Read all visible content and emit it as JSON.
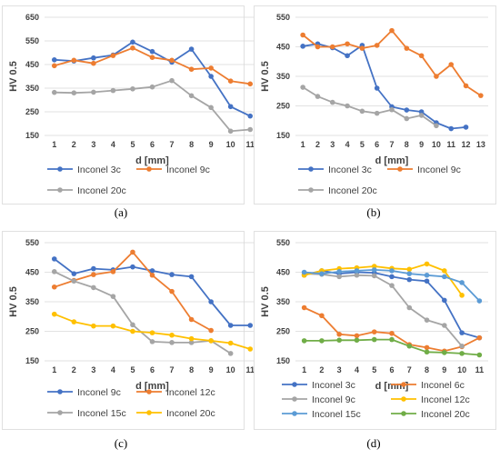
{
  "chart_data": [
    {
      "type": "line",
      "panel_label": "(a)",
      "xlabel": "d [mm]",
      "ylabel": "HV 0.5",
      "x": [
        1,
        2,
        3,
        4,
        5,
        6,
        7,
        8,
        9,
        10,
        11
      ],
      "ylim": [
        150,
        650
      ],
      "yticks": [
        150,
        250,
        350,
        450,
        550,
        650
      ],
      "grid": true,
      "legend_position": "bottom",
      "series": [
        {
          "name": "Inconel 3c",
          "color": "#4472c4",
          "values": [
            470,
            465,
            478,
            490,
            545,
            505,
            460,
            515,
            400,
            272,
            232
          ]
        },
        {
          "name": "Inconel 9c",
          "color": "#ed7d31",
          "values": [
            445,
            468,
            455,
            488,
            520,
            480,
            468,
            430,
            435,
            380,
            368
          ]
        },
        {
          "name": "Inconel 20c",
          "color": "#a5a5a5",
          "values": [
            332,
            330,
            333,
            340,
            347,
            355,
            382,
            318,
            268,
            168,
            175
          ]
        }
      ]
    },
    {
      "type": "line",
      "panel_label": "(b)",
      "xlabel": "d [mm]",
      "ylabel": "HV 0.5",
      "x": [
        1,
        2,
        3,
        4,
        5,
        6,
        7,
        8,
        9,
        10,
        11,
        12,
        13
      ],
      "ylim": [
        150,
        550
      ],
      "yticks": [
        150,
        250,
        350,
        450,
        550
      ],
      "grid": true,
      "legend_position": "bottom",
      "series": [
        {
          "name": "Inconel 3c",
          "color": "#4472c4",
          "values": [
            452,
            460,
            447,
            420,
            455,
            310,
            247,
            236,
            230,
            193,
            173,
            178,
            null
          ]
        },
        {
          "name": "Inconel 9c",
          "color": "#ed7d31",
          "values": [
            490,
            450,
            450,
            460,
            445,
            455,
            505,
            445,
            420,
            350,
            390,
            318,
            285
          ]
        },
        {
          "name": "Inconel 20c",
          "color": "#a5a5a5",
          "values": [
            313,
            282,
            262,
            250,
            232,
            225,
            237,
            207,
            218,
            183,
            null,
            null,
            null
          ]
        }
      ]
    },
    {
      "type": "line",
      "panel_label": "(c)",
      "xlabel": "d [mm]",
      "ylabel": "HV 0.5",
      "x": [
        1,
        2,
        3,
        4,
        5,
        6,
        7,
        8,
        9,
        10,
        11
      ],
      "ylim": [
        150,
        550
      ],
      "yticks": [
        150,
        250,
        350,
        450,
        550
      ],
      "grid": true,
      "legend_position": "bottom",
      "series": [
        {
          "name": "Inconel 9c",
          "color": "#4472c4",
          "values": [
            495,
            445,
            462,
            458,
            468,
            455,
            442,
            435,
            350,
            270,
            270
          ]
        },
        {
          "name": "Inconel 12c",
          "color": "#ed7d31",
          "values": [
            400,
            422,
            442,
            452,
            518,
            440,
            385,
            290,
            253,
            null,
            null
          ]
        },
        {
          "name": "Inconel 15c",
          "color": "#a5a5a5",
          "values": [
            452,
            420,
            398,
            368,
            272,
            215,
            212,
            212,
            218,
            175,
            null
          ]
        },
        {
          "name": "Inconel 20c",
          "color": "#ffc000",
          "values": [
            308,
            282,
            268,
            268,
            250,
            245,
            237,
            225,
            218,
            210,
            190
          ]
        }
      ]
    },
    {
      "type": "line",
      "panel_label": "(d)",
      "xlabel": "d [mm]",
      "ylabel": "HV 0.5",
      "x": [
        1,
        2,
        3,
        4,
        5,
        6,
        7,
        8,
        9,
        10,
        11
      ],
      "ylim": [
        150,
        550
      ],
      "yticks": [
        150,
        250,
        350,
        450,
        550
      ],
      "grid": true,
      "legend_position": "bottom",
      "series": [
        {
          "name": "Inconel 3c",
          "color": "#4472c4",
          "values": [
            440,
            455,
            445,
            450,
            448,
            435,
            425,
            420,
            355,
            245,
            228
          ]
        },
        {
          "name": "Inconel 6c",
          "color": "#ed7d31",
          "values": [
            330,
            303,
            240,
            235,
            248,
            243,
            205,
            195,
            183,
            198,
            228
          ]
        },
        {
          "name": "Inconel 9c",
          "color": "#a5a5a5",
          "values": [
            445,
            443,
            435,
            440,
            438,
            405,
            330,
            288,
            270,
            200,
            null
          ]
        },
        {
          "name": "Inconel 12c",
          "color": "#ffc000",
          "values": [
            440,
            455,
            462,
            465,
            470,
            463,
            460,
            478,
            455,
            372,
            null
          ]
        },
        {
          "name": "Inconel 15c",
          "color": "#5b9bd5",
          "values": [
            450,
            445,
            452,
            455,
            458,
            455,
            445,
            440,
            435,
            415,
            353
          ]
        },
        {
          "name": "Inconel 20c",
          "color": "#70ad47",
          "values": [
            218,
            218,
            220,
            220,
            222,
            222,
            200,
            180,
            178,
            175,
            170
          ]
        }
      ]
    }
  ]
}
